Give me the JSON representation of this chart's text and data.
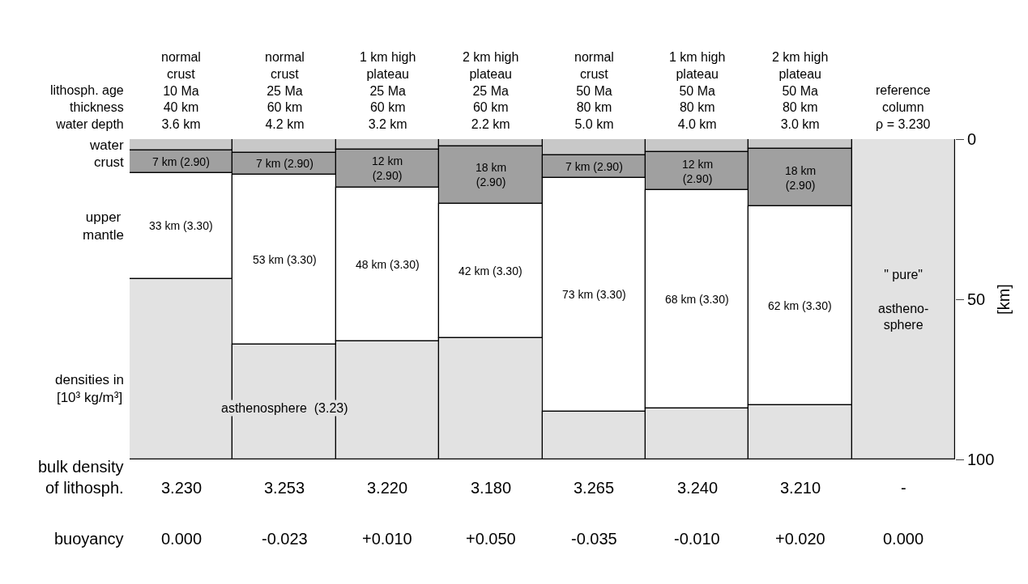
{
  "chart_data": {
    "type": "bar",
    "stacked": true,
    "categories": [
      "normal\ncrust\n10 Ma\n40 km\n3.6 km",
      "normal\ncrust\n25 Ma\n60 km\n4.2 km",
      "1 km high\nplateau\n25 Ma\n60 km\n3.2 km",
      "2 km high\nplateau\n25 Ma\n60 km\n2.2 km",
      "normal\ncrust\n50 Ma\n80 km\n5.0 km",
      "1 km high\nplateau\n50 Ma\n80 km\n4.0 km",
      "2 km high\nplateau\n50 Ma\n80 km\n3.0 km",
      "\n\nreference\ncolumn\nρ = 3.230"
    ],
    "series": [
      {
        "name": "water",
        "color": "#c8c8c8",
        "values": [
          3.6,
          4.2,
          3.2,
          2.2,
          5.0,
          4.0,
          3.0,
          0
        ]
      },
      {
        "name": "crust",
        "color": "#a0a0a0",
        "values": [
          7,
          7,
          12,
          18,
          7,
          12,
          18,
          0
        ],
        "value_labels": [
          "7 km (2.90)",
          "7 km (2.90)",
          "12 km\n(2.90)",
          "18 km\n(2.90)",
          "7 km (2.90)",
          "12 km\n(2.90)",
          "18 km\n(2.90)",
          null
        ]
      },
      {
        "name": "upper\nmantle",
        "color": "#ffffff",
        "values": [
          33,
          53,
          48,
          42,
          73,
          68,
          62,
          0
        ],
        "value_labels": [
          "33 km (3.30)",
          "53 km (3.30)",
          "48 km (3.30)",
          "42 km (3.30)",
          "73 km (3.30)",
          "68 km (3.30)",
          "62 km (3.30)",
          null
        ]
      },
      {
        "color": "#e2e2e2",
        "values": [
          56.4,
          35.8,
          36.8,
          37.8,
          15.0,
          16.0,
          17.0,
          100
        ]
      }
    ],
    "ylim": [
      100,
      0
    ],
    "yticks": [
      0,
      50,
      100
    ],
    "ylabel": "[km]",
    "annotations": [
      "lithosph. age\nthickness\nwater depth",
      "densities in\n[10³ kg/m³]",
      "asthenosphere  (3.23)",
      "\" pure\"\n\nastheno-\nsphere",
      "bulk density\nof lithosph.",
      "3.230",
      "3.253",
      "3.220",
      "3.180",
      "3.265",
      "3.240",
      "3.210",
      "-",
      "buoyancy",
      "0.000",
      "-0.023",
      "+0.010",
      "+0.050",
      "-0.035",
      "-0.010",
      "+0.020",
      "0.000"
    ]
  }
}
